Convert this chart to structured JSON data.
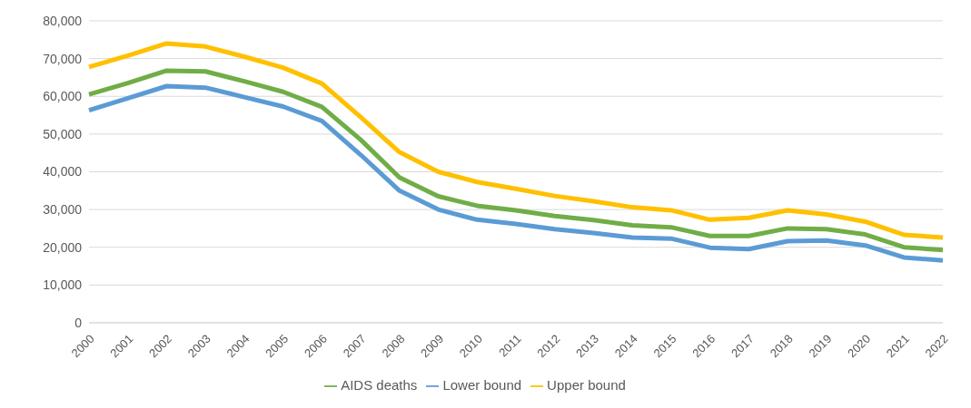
{
  "chart_data": {
    "type": "line",
    "categories": [
      "2000",
      "2001",
      "2002",
      "2003",
      "2004",
      "2005",
      "2006",
      "2007",
      "2008",
      "2009",
      "2010",
      "2011",
      "2012",
      "2013",
      "2014",
      "2015",
      "2016",
      "2017",
      "2018",
      "2019",
      "2020",
      "2021",
      "2022"
    ],
    "series": [
      {
        "name": "AIDS deaths",
        "color": "#70ad47",
        "values": [
          60500,
          63500,
          66800,
          66600,
          64000,
          61200,
          57200,
          48500,
          38500,
          33500,
          31000,
          29800,
          28300,
          27200,
          25800,
          25300,
          23000,
          23000,
          25000,
          24800,
          23400,
          20000,
          19300
        ]
      },
      {
        "name": "Lower bound",
        "color": "#5b9bd5",
        "values": [
          56300,
          59500,
          62700,
          62300,
          59800,
          57300,
          53500,
          44500,
          35000,
          30000,
          27300,
          26200,
          24800,
          23800,
          22600,
          22300,
          19900,
          19500,
          21600,
          21800,
          20500,
          17300,
          16500
        ]
      },
      {
        "name": "Upper bound",
        "color": "#ffc000",
        "values": [
          67800,
          70800,
          74000,
          73200,
          70500,
          67600,
          63400,
          54500,
          45200,
          40000,
          37300,
          35500,
          33600,
          32200,
          30600,
          29800,
          27300,
          27800,
          29800,
          28700,
          26800,
          23300,
          22600
        ]
      }
    ],
    "ylim": [
      0,
      80000
    ],
    "yticks": [
      0,
      {
        "value": 10000,
        "label": "10,000"
      },
      {
        "value": 20000,
        "label": "20,000"
      },
      {
        "value": 30000,
        "label": "30,000"
      },
      {
        "value": 40000,
        "label": "40,000"
      },
      {
        "value": 50000,
        "label": "50,000"
      },
      {
        "value": 60000,
        "label": "60,000"
      },
      {
        "value": 70000,
        "label": "70,000"
      },
      {
        "value": 80000,
        "label": "80,000"
      }
    ],
    "grid": "y",
    "legend": "bottom",
    "marker": "none",
    "line_style": "solid"
  }
}
